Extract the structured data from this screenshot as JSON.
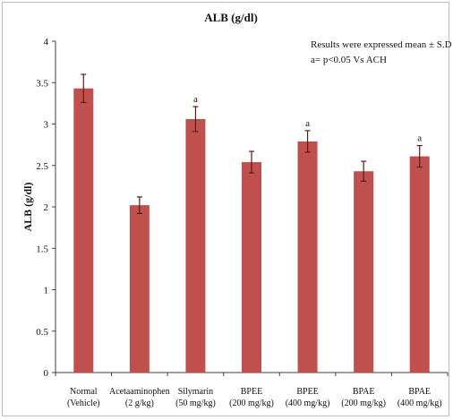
{
  "chart_data": {
    "type": "bar",
    "title": "ALB (g/dl)",
    "ylabel": "ALB (g/dl)",
    "xlabel": "",
    "ylim": [
      0,
      4
    ],
    "yticks": [
      0,
      0.5,
      1,
      1.5,
      2,
      2.5,
      3,
      3.5,
      4
    ],
    "grid": false,
    "categories": [
      [
        "Normal",
        "(Vehicle)"
      ],
      [
        "Acetaaminophen",
        "(2 g/kg)"
      ],
      [
        "Silymarin",
        "(50 mg/kg)"
      ],
      [
        "BPEE",
        "(200 mg/kg)"
      ],
      [
        "BPEE",
        "(400 mg/kg)"
      ],
      [
        "BPAE",
        "(200 mg/kg)"
      ],
      [
        "BPAE",
        "(400 mg/kg)"
      ]
    ],
    "values": [
      3.43,
      2.02,
      3.06,
      2.54,
      2.79,
      2.43,
      2.61
    ],
    "errors": [
      0.17,
      0.1,
      0.15,
      0.13,
      0.13,
      0.12,
      0.13
    ],
    "significance": [
      "",
      "",
      "a",
      "",
      "a",
      "",
      "a"
    ],
    "bar_color": "#c0504d",
    "error_color": "#5a1a18",
    "annotations": [
      "Results were expressed mean ± S.D",
      "a= p<0.05 Vs  ACH"
    ]
  }
}
